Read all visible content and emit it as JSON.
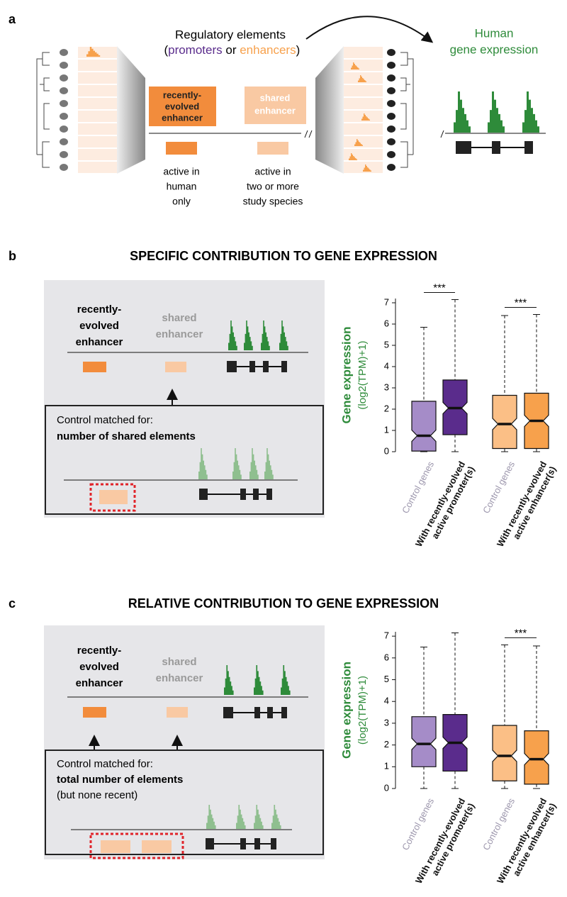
{
  "panel_a": {
    "label": "a",
    "title": "Regulatory elements",
    "subtitle_parts": [
      "(",
      "promoters",
      " or ",
      "enhancers",
      ")"
    ],
    "expression_label": [
      "Human",
      "gene expression"
    ],
    "recent_box": [
      "recently-",
      "evolved",
      "enhancer"
    ],
    "shared_box": [
      "shared",
      "enhancer"
    ],
    "recent_caption": [
      "active in",
      "human",
      "only"
    ],
    "shared_caption": [
      "active in",
      "two or more",
      "study species"
    ]
  },
  "panel_b": {
    "label": "b",
    "title": "SPECIFIC CONTRIBUTION TO GENE EXPRESSION",
    "recent_label": [
      "recently-",
      "evolved",
      "enhancer"
    ],
    "shared_label": [
      "shared",
      "enhancer"
    ],
    "control_heading": "Control matched for:",
    "control_criteria": "number of shared elements"
  },
  "panel_c": {
    "label": "c",
    "title": "RELATIVE CONTRIBUTION TO GENE EXPRESSION",
    "recent_label": [
      "recently-",
      "evolved",
      "enhancer"
    ],
    "shared_label": [
      "shared",
      "enhancer"
    ],
    "control_heading": "Control matched for:",
    "control_criteria": "total number of elements",
    "control_note": "(but none recent)"
  },
  "chart_data": [
    {
      "type": "box",
      "ylabel": "Gene expression",
      "ylabel_units": "(log2(TPM)+1)",
      "categories": [
        "Control genes",
        "With recently-evolved active promoter(s)",
        "Control genes",
        "With recently-evolved active enhancer(s)"
      ],
      "values": [
        [
          0,
          0.03,
          0.75,
          2.37,
          5.85
        ],
        [
          0,
          0.8,
          2.05,
          3.37,
          7.15
        ],
        [
          0,
          0.15,
          1.3,
          2.65,
          6.4
        ],
        [
          0,
          0.15,
          1.45,
          2.75,
          6.45
        ]
      ],
      "colors": [
        "#a58cc8",
        "#5a2c8c",
        "#fbbf86",
        "#f7a14c"
      ],
      "significance": [
        "***",
        "***"
      ],
      "ylim": [
        0,
        7.2
      ],
      "yticks": [
        0,
        1,
        2,
        3,
        4,
        5,
        6,
        7
      ]
    },
    {
      "type": "box",
      "ylabel": "Gene expression",
      "ylabel_units": "(log2(TPM)+1)",
      "categories": [
        "Control genes",
        "With recently-evolved active promoter(s)",
        "Control genes",
        "With recently-evolved active enhancer(s)"
      ],
      "values": [
        [
          0,
          1.0,
          2.05,
          3.3,
          6.5
        ],
        [
          0,
          0.8,
          2.1,
          3.4,
          7.15
        ],
        [
          0,
          0.35,
          1.5,
          2.9,
          6.6
        ],
        [
          0,
          0.2,
          1.35,
          2.65,
          6.55
        ]
      ],
      "colors": [
        "#a58cc8",
        "#5a2c8c",
        "#fbbf86",
        "#f7a14c"
      ],
      "significance": [
        null,
        "***"
      ],
      "ylim": [
        0,
        7.2
      ],
      "yticks": [
        0,
        1,
        2,
        3,
        4,
        5,
        6,
        7
      ]
    }
  ]
}
